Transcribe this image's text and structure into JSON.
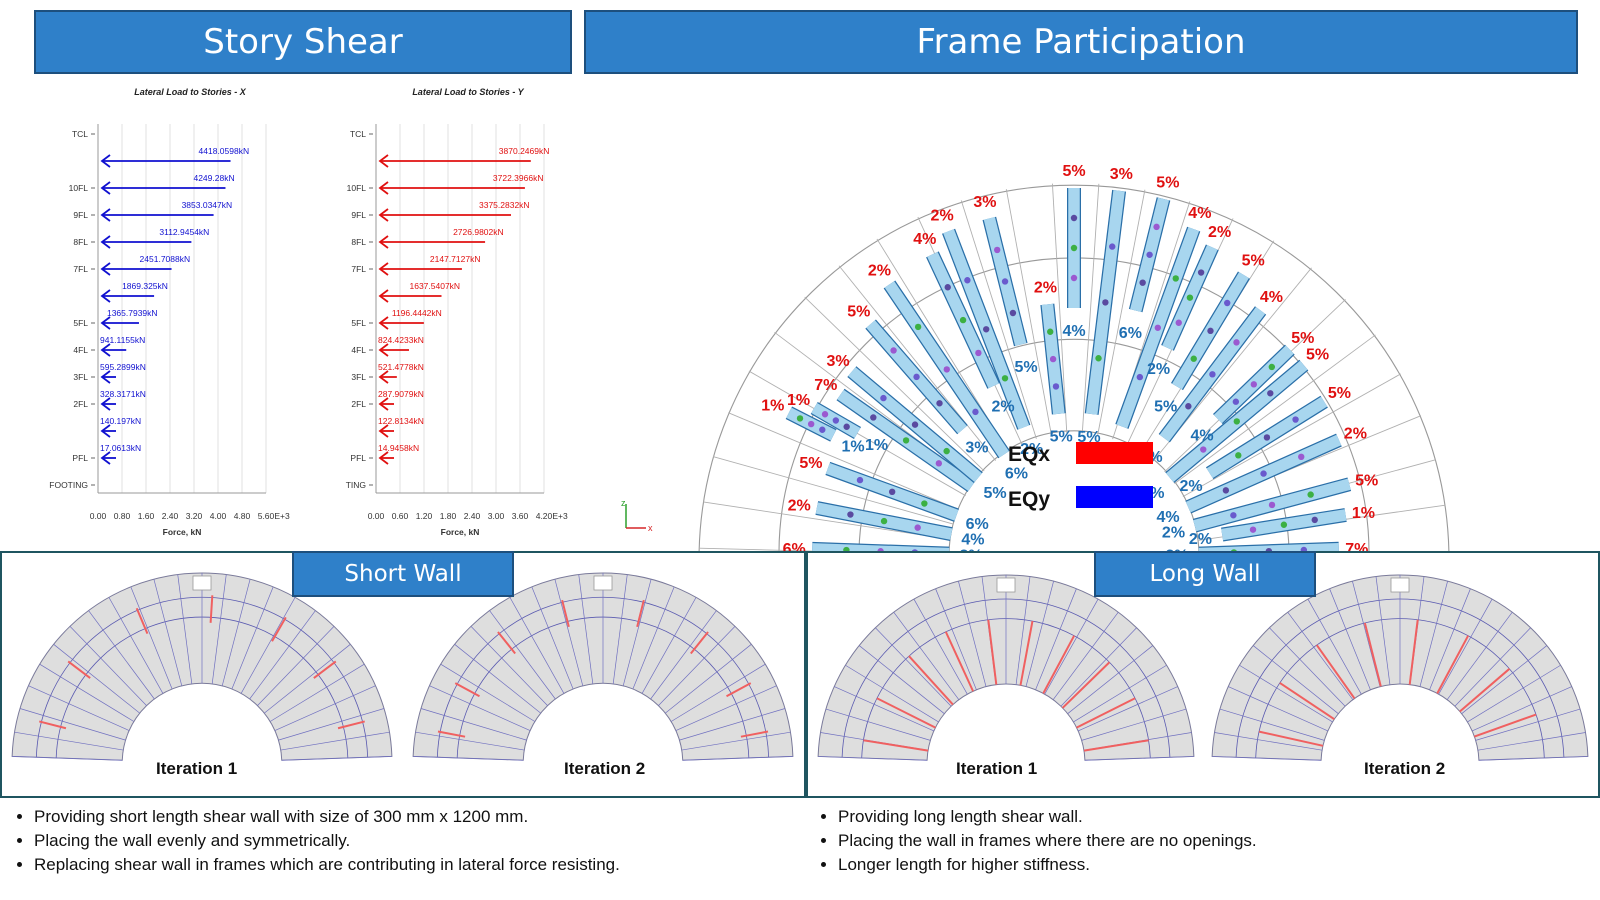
{
  "headers": {
    "story_shear": "Story Shear",
    "frame_participation": "Frame Participation",
    "short_wall": "Short Wall",
    "long_wall": "Long Wall"
  },
  "legend": {
    "eqx_label": "EQx",
    "eqy_label": "EQy",
    "eqx_color": "#ff0000",
    "eqy_color": "#0000ff"
  },
  "iterations": {
    "short_1": "Iteration 1",
    "short_2": "Iteration 2",
    "long_1": "Iteration 1",
    "long_2": "Iteration 2"
  },
  "bullets": {
    "short": [
      "Providing short length shear wall with size of 300 mm x 1200 mm.",
      "Placing the wall evenly and symmetrically.",
      "Replacing shear wall in frames which are contributing in lateral force resisting."
    ],
    "long": [
      "Providing long length shear wall.",
      "Placing the wall in frames where there are no openings.",
      "Longer length for higher stiffness."
    ]
  },
  "axis_glyph": {
    "z": "z",
    "x": "x"
  },
  "chart_data": [
    {
      "type": "bar",
      "title": "Lateral Load to Stories - X",
      "xlabel": "Force, kN",
      "x_unit_suffix": "E+3",
      "xlim": [
        0,
        5.6
      ],
      "xticks": [
        "0.00",
        "0.80",
        "1.60",
        "2.40",
        "3.20",
        "4.00",
        "4.80",
        "5.60"
      ],
      "stories": [
        "TCL",
        "",
        "10FL",
        "9FL",
        "8FL",
        "7FL",
        "",
        "5FL",
        "4FL",
        "3FL",
        "2FL",
        "",
        "PFL",
        "FOOTING"
      ],
      "values": [
        null,
        4418.0598,
        4249.28,
        3853.0347,
        3112.9454,
        2451.7088,
        1869.325,
        1365.7939,
        941.1155,
        595.2899,
        328.3171,
        140.197,
        17.0613,
        null
      ],
      "labels": [
        "",
        "4418.0598kN",
        "4249.28kN",
        "3853.0347kN",
        "3112.9454kN",
        "2451.7088kN",
        "1869.325kN",
        "1365.7939kN",
        "941.1155kN",
        "595.2899kN",
        "328.3171kN",
        "140.197kN",
        "17.0613kN",
        ""
      ],
      "color": "#1010d0"
    },
    {
      "type": "bar",
      "title": "Lateral Load to Stories - Y",
      "xlabel": "Force, kN",
      "x_unit_suffix": "E+3",
      "xlim": [
        0,
        4.2
      ],
      "xticks": [
        "0.00",
        "0.60",
        "1.20",
        "1.80",
        "2.40",
        "3.00",
        "3.60",
        "4.20"
      ],
      "stories": [
        "TCL",
        "",
        "10FL",
        "9FL",
        "8FL",
        "7FL",
        "",
        "5FL",
        "4FL",
        "3FL",
        "2FL",
        "",
        "PFL",
        "TING"
      ],
      "values": [
        null,
        3870.2469,
        3722.3966,
        3375.2832,
        2726.9802,
        2147.7127,
        1637.5407,
        1196.4442,
        824.4233,
        521.4778,
        287.9079,
        122.8134,
        14.9458,
        null
      ],
      "labels": [
        "",
        "3870.2469kN",
        "3722.3966kN",
        "3375.2832kN",
        "2726.9802kN",
        "2147.7127kN",
        "1637.5407kN",
        "1196.4442kN",
        "824.4233kN",
        "521.4778kN",
        "287.9079kN",
        "122.8134kN",
        "14.9458kN",
        ""
      ],
      "color": "#e01010"
    }
  ],
  "frame_participation": {
    "walls": [
      {
        "ang": 178,
        "ri": 125,
        "ro": 262,
        "eqy": "3%",
        "eqx": "6%"
      },
      {
        "ang": 169,
        "ri": 125,
        "ro": 262,
        "eqy": "4%",
        "eqx": "2%"
      },
      {
        "ang": 160,
        "ri": 125,
        "ro": 262,
        "eqy": "6%",
        "eqx": "5%"
      },
      {
        "ang": 150,
        "ri": 250,
        "ro": 300,
        "eqy": "1%",
        "eqx": "1%"
      },
      {
        "ang": 153,
        "ri": 270,
        "ro": 320,
        "eqy": "1%",
        "eqx": "1%"
      },
      {
        "ang": 145,
        "ri": 125,
        "ro": 285,
        "eqy": "",
        "eqx": "7%"
      },
      {
        "ang": 140,
        "ri": 125,
        "ro": 290,
        "eqy": "5%",
        "eqx": "3%"
      },
      {
        "ang": 131,
        "ri": 170,
        "ro": 310,
        "eqy": "3%",
        "eqx": "5%"
      },
      {
        "ang": 124,
        "ri": 125,
        "ro": 330,
        "eqy": "6%",
        "eqx": "2%"
      },
      {
        "ang": 115,
        "ri": 190,
        "ro": 335,
        "eqy": "2%",
        "eqx": "4%"
      },
      {
        "ang": 111,
        "ri": 140,
        "ro": 350,
        "eqy": "2%",
        "eqx": "2%"
      },
      {
        "ang": 104,
        "ri": 220,
        "ro": 350,
        "eqy": "5%",
        "eqx": "3%"
      },
      {
        "ang": 96,
        "ri": 145,
        "ro": 255,
        "eqy": "5%",
        "eqx": "2%"
      },
      {
        "ang": 90,
        "ri": 250,
        "ro": 370,
        "eqy": "4%",
        "eqx": "5%"
      },
      {
        "ang": 83,
        "ri": 145,
        "ro": 370,
        "eqy": "5%",
        "eqx": "3%"
      },
      {
        "ang": 76,
        "ri": 255,
        "ro": 370,
        "eqy": "6%",
        "eqx": "5%"
      },
      {
        "ang": 70,
        "ri": 140,
        "ro": 350,
        "eqy": "6%",
        "eqx": "4%"
      },
      {
        "ang": 66,
        "ri": 230,
        "ro": 340,
        "eqy": "2%",
        "eqx": "2%"
      },
      {
        "ang": 59,
        "ri": 200,
        "ro": 330,
        "eqy": "5%",
        "eqx": "5%"
      },
      {
        "ang": 53,
        "ri": 150,
        "ro": 310,
        "eqy": "5%",
        "eqx": "4%"
      },
      {
        "ang": 44,
        "ri": 200,
        "ro": 300,
        "eqy": "4%",
        "eqx": "5%"
      },
      {
        "ang": 40,
        "ri": 125,
        "ro": 300,
        "eqy": "4%",
        "eqx": "5%"
      },
      {
        "ang": 32,
        "ri": 160,
        "ro": 295,
        "eqy": "2%",
        "eqx": "5%"
      },
      {
        "ang": 24,
        "ri": 125,
        "ro": 290,
        "eqy": "4%",
        "eqx": "2%"
      },
      {
        "ang": 15,
        "ri": 125,
        "ro": 285,
        "eqy": "2%",
        "eqx": "5%"
      },
      {
        "ang": 9,
        "ri": 150,
        "ro": 275,
        "eqy": "2%",
        "eqx": "1%"
      },
      {
        "ang": 2,
        "ri": 125,
        "ro": 265,
        "eqy": "2%",
        "eqx": "7%"
      }
    ]
  }
}
